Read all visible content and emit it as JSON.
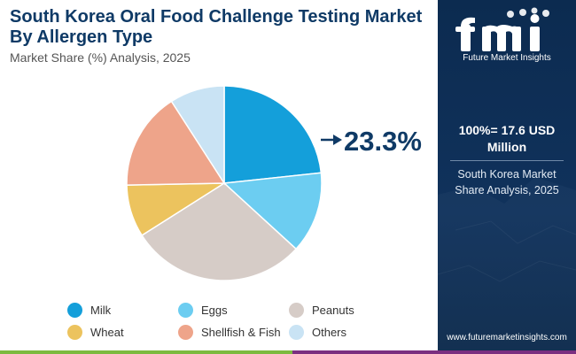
{
  "header": {
    "title": "South Korea Oral Food Challenge Testing Market By Allergen Type",
    "subtitle": "Market Share (%) Analysis, 2025"
  },
  "chart_data": {
    "type": "pie",
    "title": "South Korea Oral Food Challenge Testing Market By Allergen Type",
    "subtitle": "Market Share (%) Analysis, 2025",
    "legend_position": "bottom",
    "slices": [
      {
        "label": "Milk",
        "value": 23.3,
        "color": "#149fda"
      },
      {
        "label": "Eggs",
        "value": 13.5,
        "color": "#6ccdf1"
      },
      {
        "label": "Peanuts",
        "value": 29.2,
        "color": "#d6ccc7"
      },
      {
        "label": "Wheat",
        "value": 8.7,
        "color": "#ecc35e"
      },
      {
        "label": "Shellfish & Fish",
        "value": 16.2,
        "color": "#eea48a"
      },
      {
        "label": "Others",
        "value": 9.1,
        "color": "#c9e3f4"
      }
    ],
    "callout": {
      "label": "Milk",
      "text": "23.3%"
    }
  },
  "sidebar": {
    "logo_name": "Future Market Insights",
    "total_line1": "100%= 17.6 USD",
    "total_line2": "Million",
    "subtitle_line1": "South Korea Market",
    "subtitle_line2": "Share Analysis, 2025",
    "url": "www.futuremarketinsights.com"
  },
  "colors": {
    "title": "#0f3a66",
    "panel": "#0f3258",
    "bar_green": "#7cba3f",
    "bar_purple": "#7b2f80"
  },
  "icons": [
    "fmi-logo-icon",
    "arrow-right-icon"
  ]
}
